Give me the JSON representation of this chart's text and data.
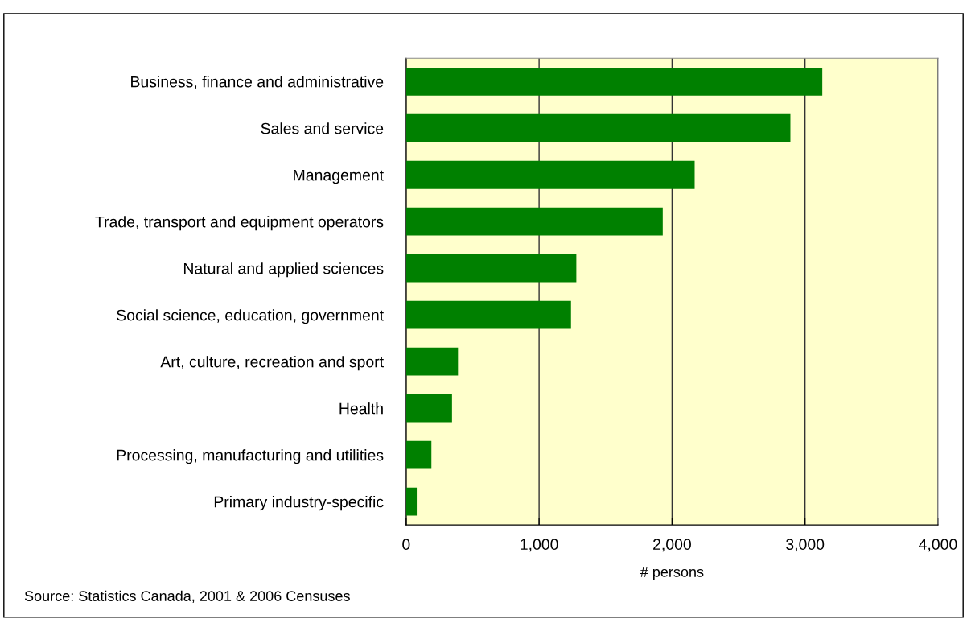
{
  "chart_data": {
    "type": "bar",
    "orientation": "horizontal",
    "categories": [
      "Business, finance and administrative",
      "Sales and service",
      "Management",
      "Trade, transport and equipment operators",
      "Natural and applied sciences",
      "Social science, education, government",
      "Art, culture, recreation and sport",
      "Health",
      "Processing, manufacturing and utilities",
      "Primary industry-specific"
    ],
    "values": [
      3130,
      2890,
      2170,
      1930,
      1280,
      1240,
      390,
      345,
      190,
      80
    ],
    "color": "#008000",
    "xlim": [
      0,
      4000
    ],
    "xticks": [
      {
        "value": 0,
        "label": "0"
      },
      {
        "value": 1000,
        "label": "1,000"
      },
      {
        "value": 2000,
        "label": "2,000"
      },
      {
        "value": 3000,
        "label": "3,000"
      },
      {
        "value": 4000,
        "label": "4,000"
      }
    ],
    "xlabel": "# persons",
    "grid": "x",
    "annotations": [
      "Source: Statistics Canada, 2001 & 2006 Censuses"
    ]
  }
}
